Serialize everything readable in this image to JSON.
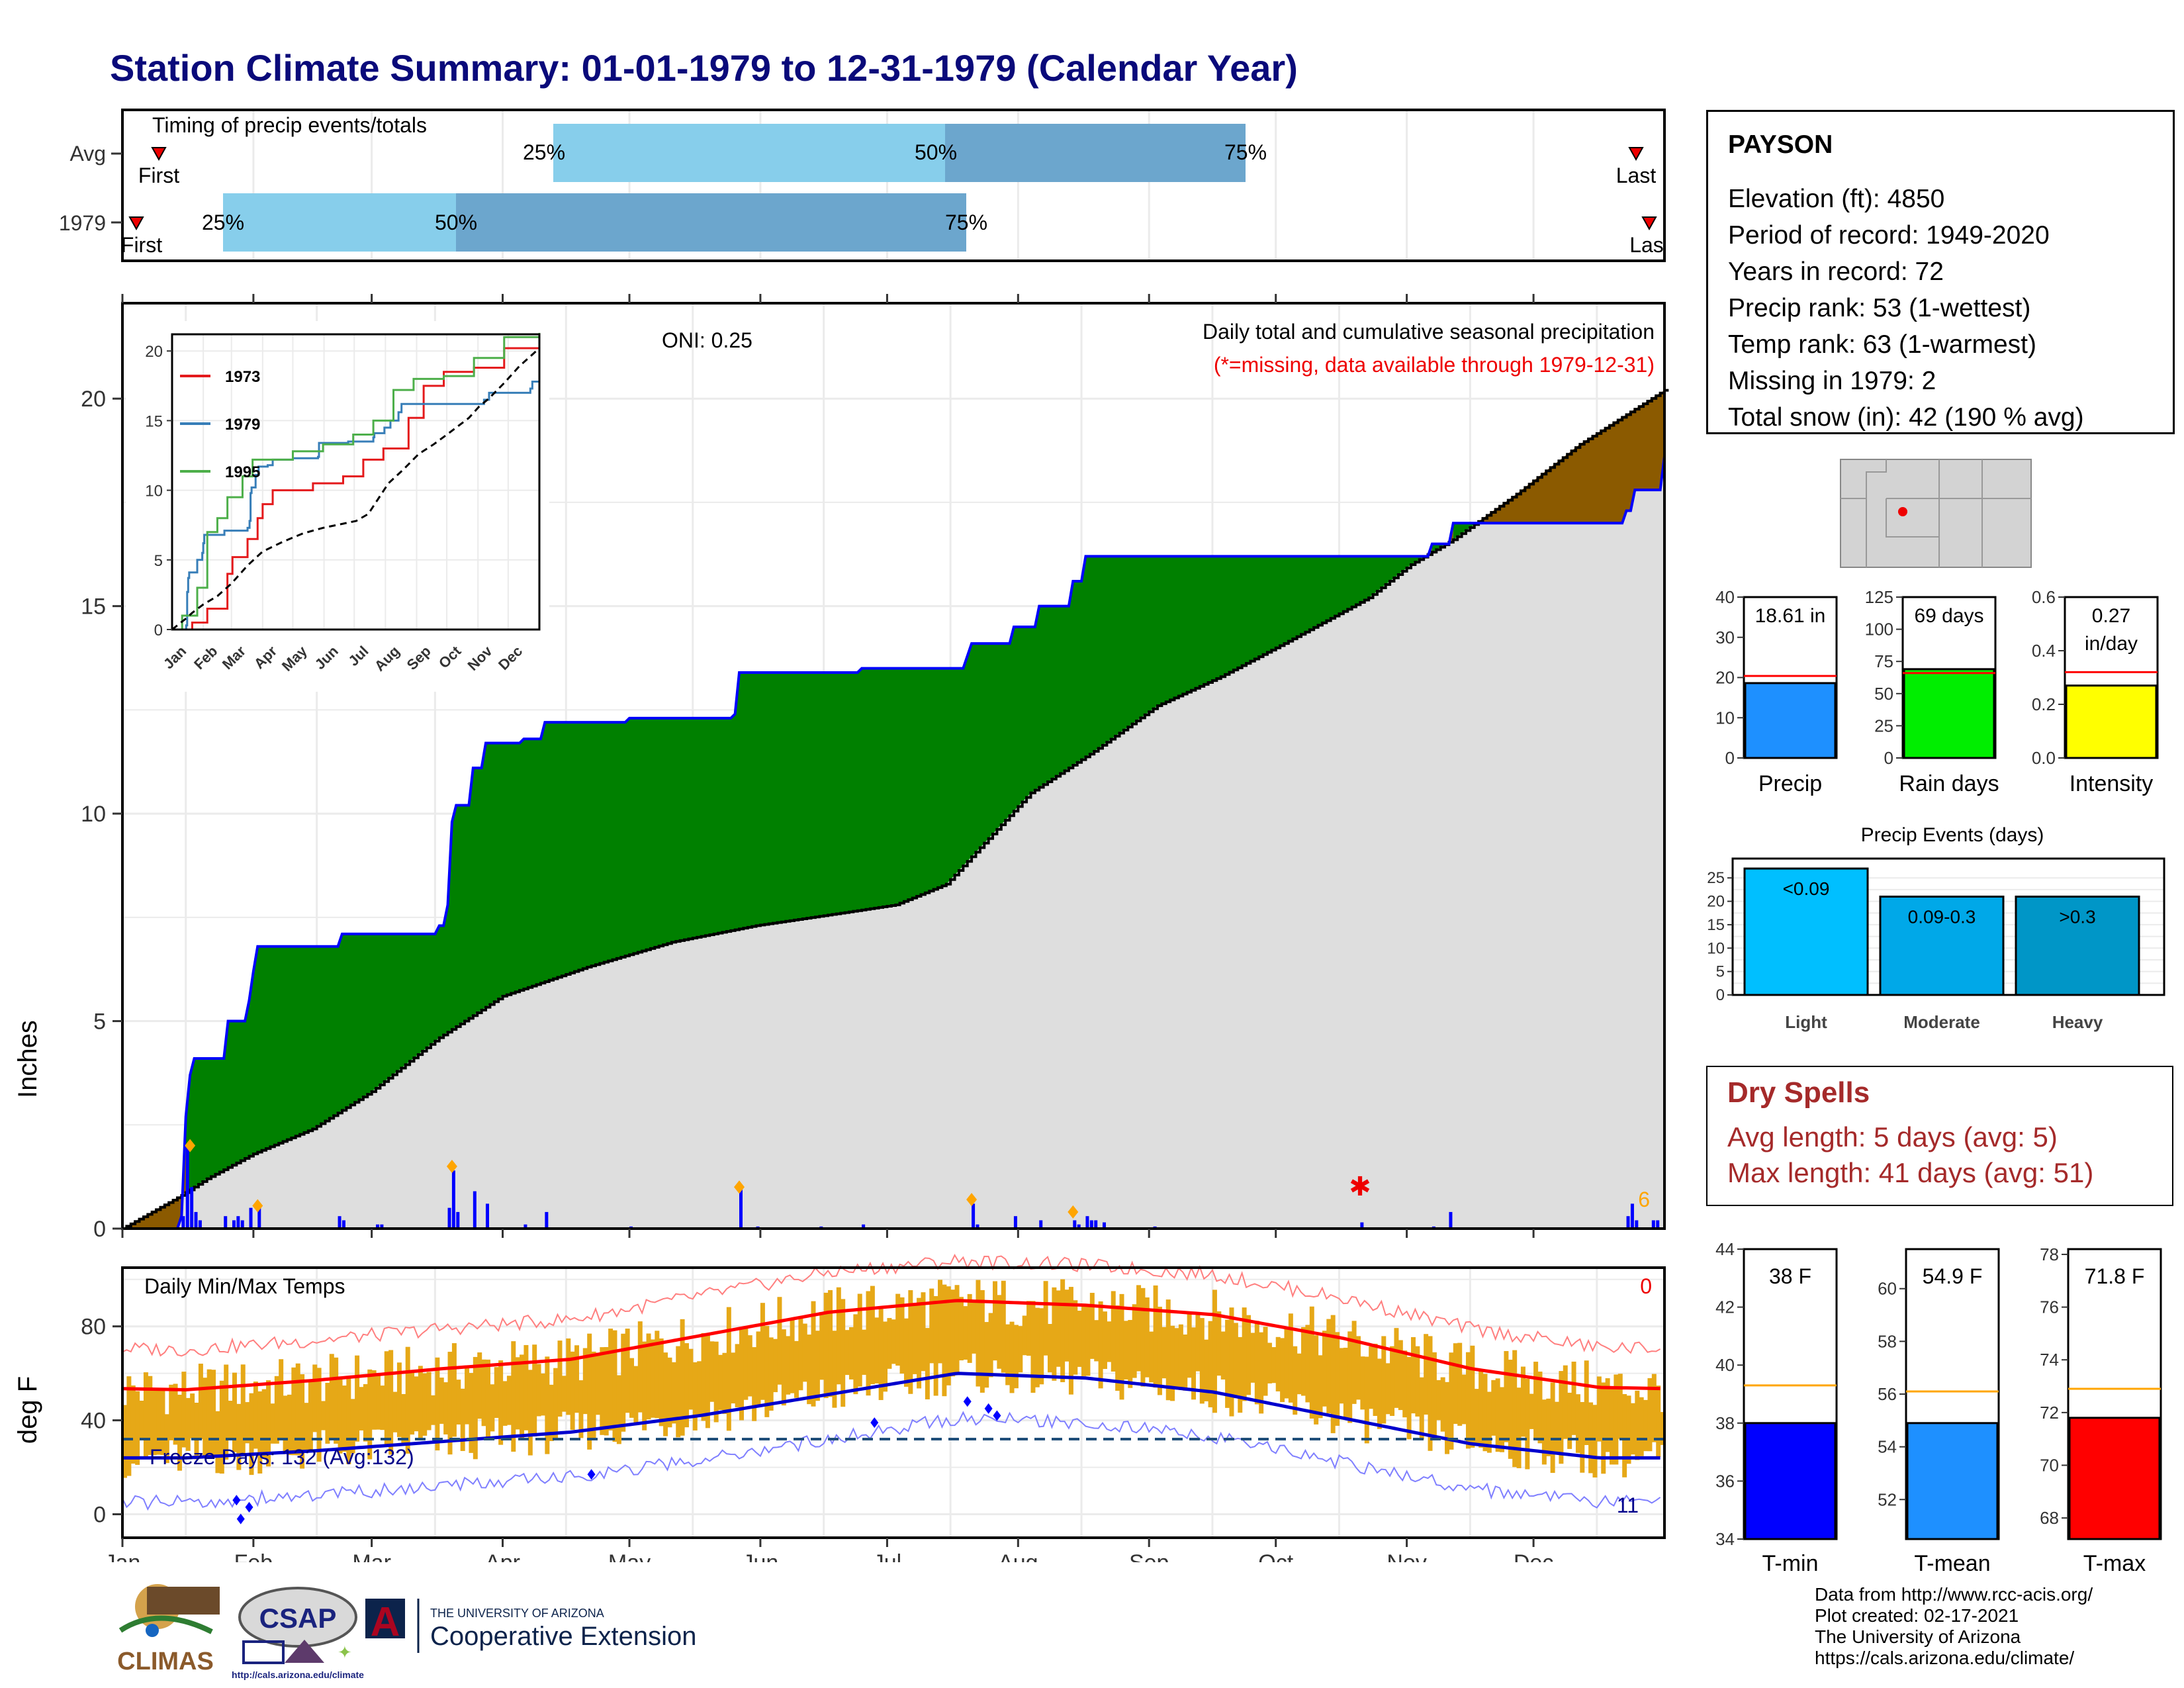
{
  "title": "Station Climate Summary: 01-01-1979 to 12-31-1979 (Calendar Year)",
  "timing": {
    "label": "Timing of precip events/totals",
    "rows": [
      "Avg",
      "1979"
    ],
    "first_label": "First",
    "last_label": "Last",
    "last_label_1979": "Las",
    "q25": "25%",
    "q50": "50%",
    "q75": "75%"
  },
  "main": {
    "ylabel": "Inches",
    "yticks": [
      "0",
      "5",
      "10",
      "15",
      "20"
    ],
    "oni": "ONI: 0.25",
    "subtitle": "Daily total and cumulative seasonal precipitation",
    "missing_note": "(*=missing, data available through 1979-12-31)",
    "corner_count": "6"
  },
  "inset": {
    "yticks": [
      "0",
      "5",
      "10",
      "15",
      "20"
    ],
    "months": [
      "Jan",
      "Feb",
      "Mar",
      "Apr",
      "May",
      "Jun",
      "Jul",
      "Aug",
      "Sep",
      "Oct",
      "Nov",
      "Dec"
    ],
    "legend": [
      {
        "name": "1973",
        "color": "#e41a1c"
      },
      {
        "name": "1979",
        "color": "#377eb8"
      },
      {
        "name": "1995",
        "color": "#4daf4a"
      }
    ]
  },
  "temps": {
    "label": "Daily Min/Max Temps",
    "ylabel": "deg F",
    "yticks": [
      "0",
      "40",
      "80"
    ],
    "freeze": "Freeze Days: 132 (Avg:132)",
    "count_top": "0",
    "count_bottom": "11"
  },
  "months": [
    "Jan",
    "Feb",
    "Mar",
    "Apr",
    "May",
    "Jun",
    "Jul",
    "Aug",
    "Sep",
    "Oct",
    "Nov",
    "Dec"
  ],
  "station": {
    "name": "PAYSON",
    "lines": [
      "Elevation (ft): 4850",
      "Period of record: 1949-2020",
      "Years in record: 72",
      "Precip rank: 53 (1-wettest)",
      "Temp rank: 63 (1-warmest)",
      "Missing in 1979: 2",
      "Total snow (in): 42 (190 % avg)"
    ]
  },
  "mini_precip": {
    "precip": {
      "label": "Precip",
      "value_text": "18.61 in",
      "value": 18.61,
      "avg": 20.4,
      "ymax": 40,
      "ticks": [
        "0",
        "10",
        "20",
        "30",
        "40"
      ],
      "color": "#1e90ff"
    },
    "rain_days": {
      "label": "Rain days",
      "value_text": "69 days",
      "value": 69,
      "avg": 66,
      "ymax": 125,
      "ticks": [
        "0",
        "25",
        "50",
        "75",
        "100",
        "125"
      ],
      "color": "#00ee00"
    },
    "intensity": {
      "label": "Intensity",
      "value_text": "0.27",
      "value_text2": "in/day",
      "value": 0.27,
      "avg": 0.32,
      "ymax": 0.6,
      "ticks": [
        "0.0",
        "0.2",
        "0.4",
        "0.6"
      ],
      "color": "#ffff00"
    }
  },
  "events": {
    "title": "Precip Events (days)",
    "ticks": [
      "0",
      "5",
      "10",
      "15",
      "20",
      "25"
    ],
    "bars": [
      {
        "category": "Light",
        "label": "<0.09",
        "value": 27,
        "color": "#00bfff"
      },
      {
        "category": "Moderate",
        "label": "0.09-0.3",
        "value": 21,
        "color": "#00a8e8"
      },
      {
        "category": "Heavy",
        "label": ">0.3",
        "value": 21,
        "color": "#0096c7"
      }
    ]
  },
  "dry_spells": {
    "title": "Dry Spells",
    "avg_length": "Avg length: 5 days (avg: 5)",
    "max_length": "Max length: 41 days (avg: 51)"
  },
  "mini_temps": {
    "tmin": {
      "label": "T-min",
      "value_text": "38 F",
      "value": 38,
      "avg": 39.3,
      "ymin": 34,
      "ymax": 44,
      "ticks": [
        "34",
        "36",
        "38",
        "40",
        "42",
        "44"
      ],
      "color": "#0000ff"
    },
    "tmean": {
      "label": "T-mean",
      "value_text": "54.9 F",
      "value": 54.9,
      "avg": 56.1,
      "ymin": 50.5,
      "ymax": 61.5,
      "ticks": [
        "52",
        "54",
        "56",
        "58",
        "60"
      ],
      "color": "#1e90ff"
    },
    "tmax": {
      "label": "T-max",
      "value_text": "71.8 F",
      "value": 71.8,
      "avg": 72.9,
      "ymin": 67.2,
      "ymax": 78.2,
      "ticks": [
        "68",
        "70",
        "72",
        "74",
        "76",
        "78"
      ],
      "color": "#ff0000"
    }
  },
  "footer": {
    "lines": [
      "Data from http://www.rcc-acis.org/",
      "Plot created: 02-17-2021",
      "The University of Arizona",
      "https://cals.arizona.edu/climate/"
    ],
    "logo_climas": "CLIMAS",
    "logo_csap": "CSAP",
    "logo_csap_url": "http://cals.arizona.edu/climate",
    "logo_ua_small": "THE UNIVERSITY OF ARIZONA",
    "logo_ua_big": "Cooperative Extension",
    "logo_ua_letter": "A"
  },
  "chart_data": [
    {
      "type": "bar",
      "title": "Timing of precip events/totals",
      "categories": [
        "Avg",
        "1979"
      ],
      "series": [
        {
          "name": "25%",
          "values": [
            "Apr 15",
            "Feb 27"
          ]
        },
        {
          "name": "50%",
          "values": [
            "Jul 14",
            "Mar 26"
          ]
        },
        {
          "name": "75%",
          "values": [
            "Sep 24",
            "Jul 21"
          ]
        }
      ]
    },
    {
      "type": "area",
      "title": "Daily total and cumulative seasonal precipitation",
      "ylabel": "Inches",
      "ylim": [
        0,
        22
      ],
      "x": [
        "Jan 1",
        "Jan 15",
        "Jan 20",
        "Feb 1",
        "Feb 15",
        "Mar 1",
        "Mar 20",
        "Mar 28",
        "Apr 10",
        "May 1",
        "May 25",
        "Jun 15",
        "Jul 15",
        "Aug 1",
        "Aug 15",
        "Sep 1",
        "Oct 1",
        "Nov 1",
        "Nov 10",
        "Dec 20",
        "Dec 31"
      ],
      "series": [
        {
          "name": "1979",
          "values": [
            0,
            0.3,
            4.1,
            4.3,
            6.8,
            6.8,
            7.8,
            11.7,
            12.2,
            12.3,
            13.4,
            13.5,
            14.1,
            15.6,
            16.2,
            16.2,
            16.5,
            16.5,
            17.2,
            17.3,
            18.61
          ]
        },
        {
          "name": "Avg",
          "values": [
            0,
            0.8,
            1.2,
            1.8,
            2.5,
            3.6,
            5.2,
            5.8,
            6.5,
            7.1,
            7.6,
            7.8,
            8.3,
            10.2,
            11.6,
            13.0,
            14.8,
            16.4,
            17.1,
            19.4,
            20.2
          ]
        }
      ]
    },
    {
      "type": "line",
      "title": "Daily Min/Max Temps",
      "ylabel": "deg F",
      "ylim": [
        -10,
        105
      ],
      "x": [
        "Jan",
        "Feb",
        "Mar",
        "Apr",
        "May",
        "Jun",
        "Jul",
        "Aug",
        "Sep",
        "Oct",
        "Nov",
        "Dec"
      ],
      "series": [
        {
          "name": "Avg max",
          "values": [
            53,
            57,
            62,
            66,
            76,
            86,
            91,
            89,
            85,
            75,
            62,
            54
          ]
        },
        {
          "name": "Avg min",
          "values": [
            24,
            27,
            31,
            35,
            42,
            51,
            60,
            58,
            52,
            41,
            30,
            24
          ]
        }
      ]
    },
    {
      "type": "bar",
      "title": "Precip Events (days)",
      "categories": [
        "Light",
        "Moderate",
        "Heavy"
      ],
      "values": [
        27,
        21,
        21
      ]
    }
  ]
}
